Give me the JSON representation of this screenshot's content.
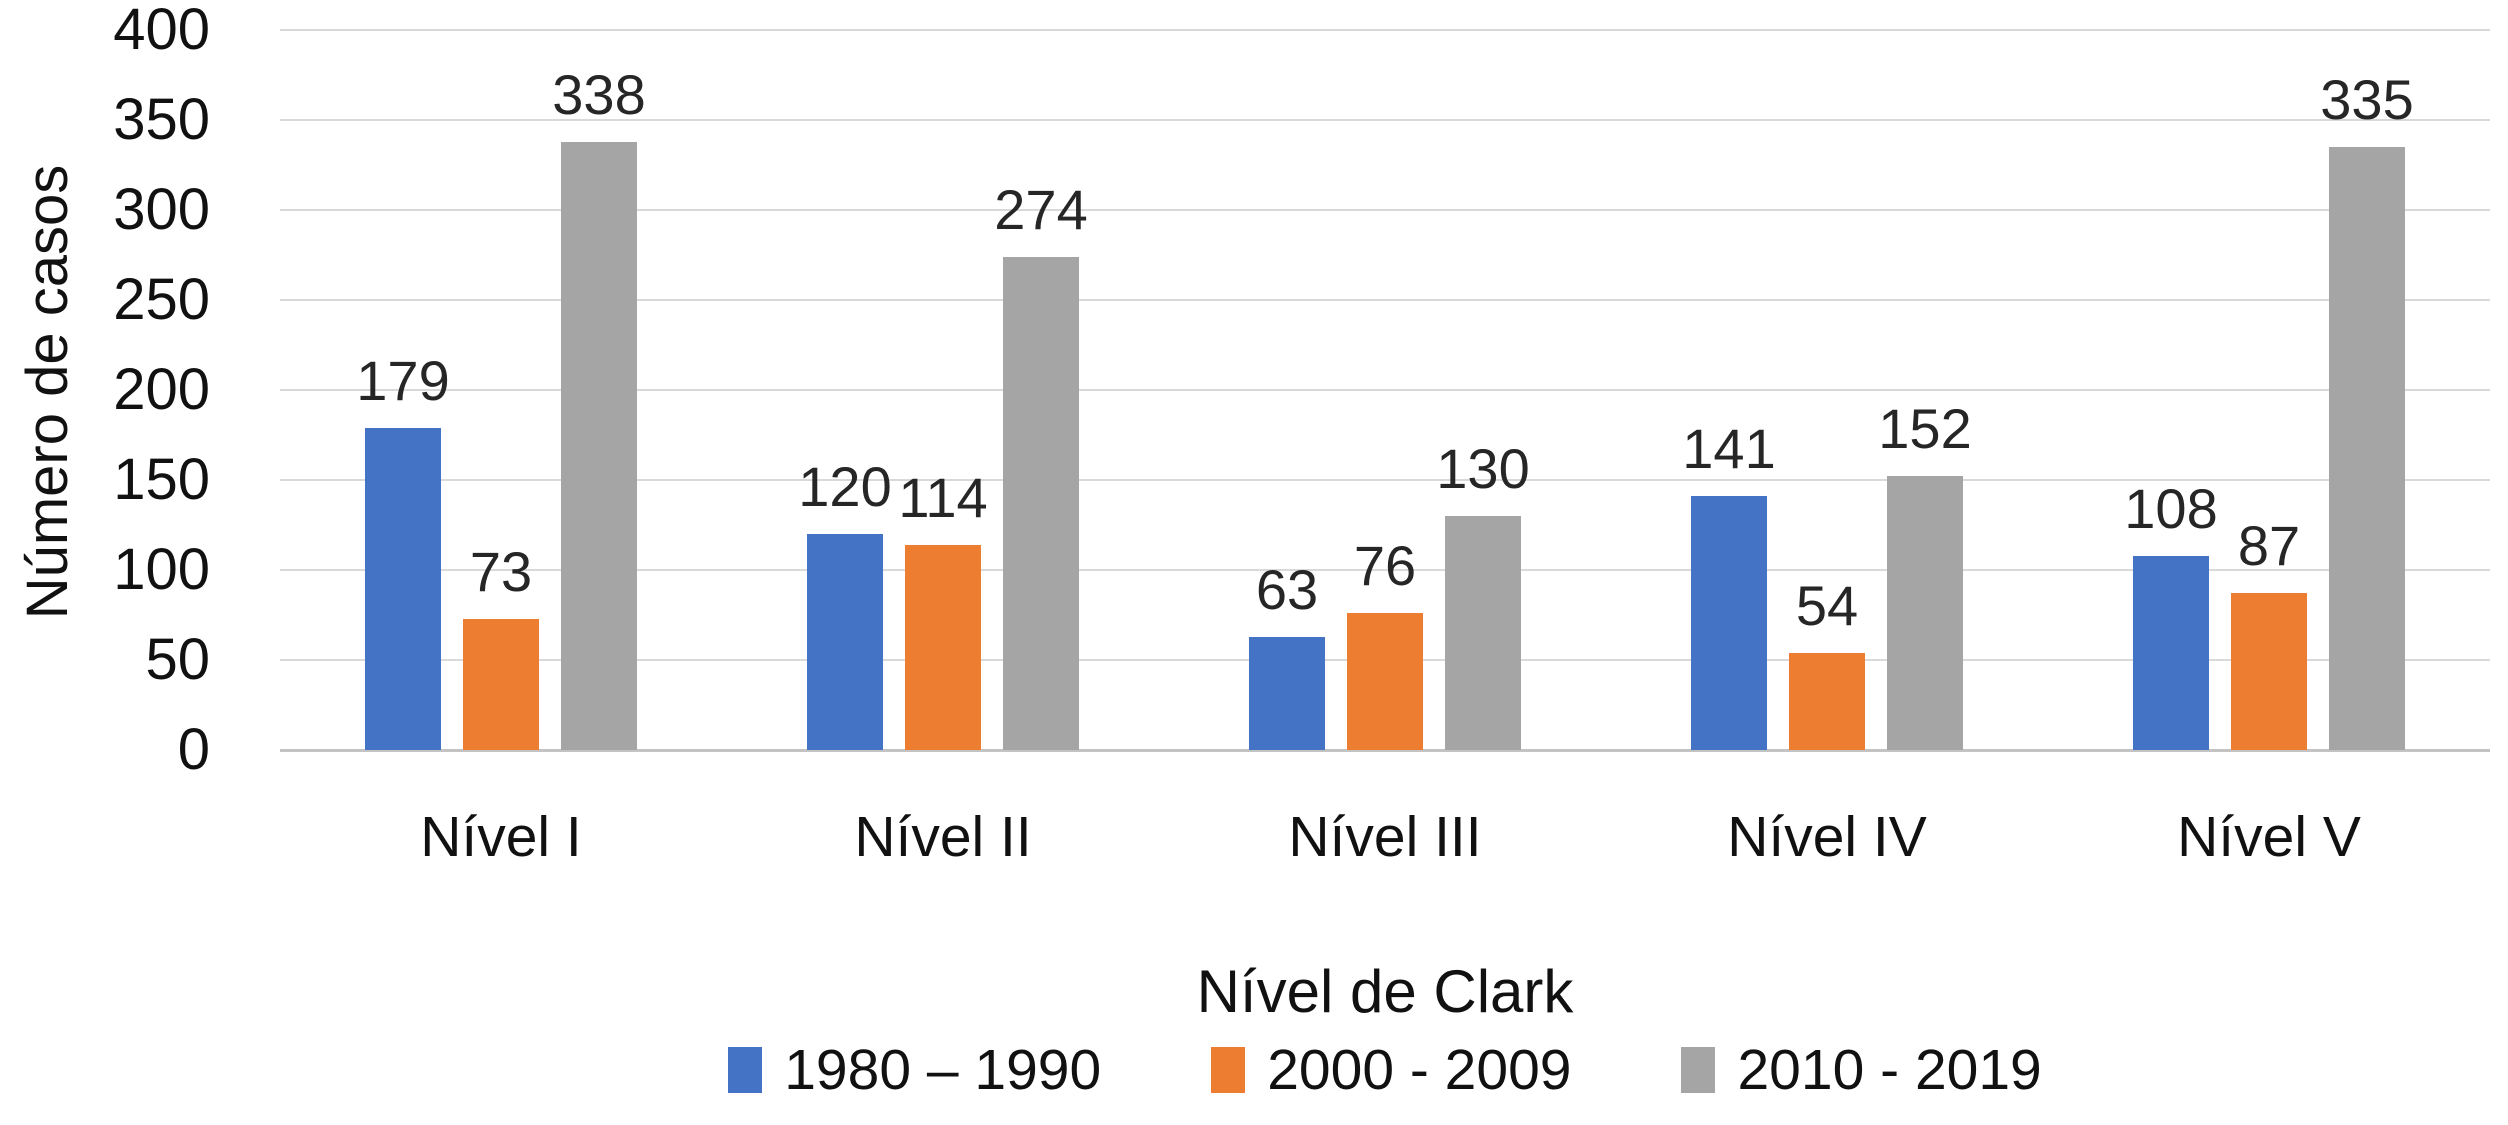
{
  "chart_data": {
    "type": "bar",
    "title": "",
    "xlabel": "Nível de Clark",
    "ylabel": "Número de casos",
    "categories": [
      "Nível I",
      "Nível II",
      "Nível III",
      "Nível IV",
      "Nível V"
    ],
    "series": [
      {
        "name": "1980 – 1990",
        "color": "#4472C4",
        "values": [
          179,
          120,
          63,
          141,
          108
        ]
      },
      {
        "name": "2000 - 2009",
        "color": "#ED7D31",
        "values": [
          73,
          114,
          76,
          54,
          87
        ]
      },
      {
        "name": "2010 - 2019",
        "color": "#A5A5A5",
        "values": [
          338,
          274,
          130,
          152,
          335
        ]
      }
    ],
    "y_axis": {
      "ticks": [
        0,
        50,
        100,
        150,
        200,
        250,
        300,
        350,
        400
      ],
      "ylim": [
        0,
        400
      ]
    },
    "layout": {
      "grid": "horizontal",
      "legend_position": "bottom",
      "data_labels": "above-bars",
      "gridline_color": "#d9d9d9",
      "axis_line_color": "#c3c3c3"
    }
  }
}
